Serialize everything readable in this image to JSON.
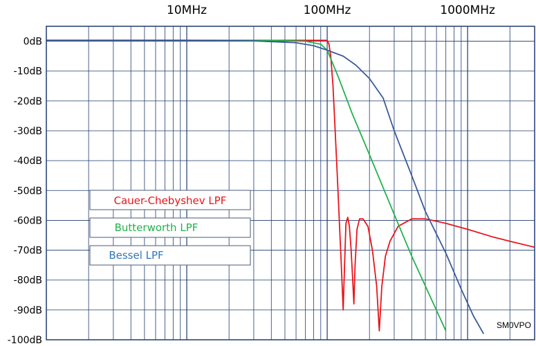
{
  "chart_data": {
    "type": "line",
    "title": "",
    "xlabel": "",
    "ylabel": "",
    "x_scale": "log",
    "xlim_mhz": [
      1,
      3000
    ],
    "ylim": [
      -100,
      5
    ],
    "grid": true,
    "legend_placement": "left",
    "credit": "SM0VPO",
    "x_ticks": [
      {
        "value": 10,
        "label": "10MHz"
      },
      {
        "value": 100,
        "label": "100MHz"
      },
      {
        "value": 1000,
        "label": "1000MHz"
      }
    ],
    "y_ticks": [
      {
        "value": 0,
        "label": "0dB"
      },
      {
        "value": -10,
        "label": "-10dB"
      },
      {
        "value": -20,
        "label": "-20dB"
      },
      {
        "value": -30,
        "label": "-30dB"
      },
      {
        "value": -40,
        "label": "-40dB"
      },
      {
        "value": -50,
        "label": "-50dB"
      },
      {
        "value": -60,
        "label": "-60dB"
      },
      {
        "value": -70,
        "label": "-70dB"
      },
      {
        "value": -80,
        "label": "-80dB"
      },
      {
        "value": -90,
        "label": "-90dB"
      },
      {
        "value": -100,
        "label": "-100dB"
      }
    ],
    "series": [
      {
        "name": "Cauer-Chebyshev LPF",
        "color": "#e8141a",
        "points": [
          [
            1,
            0.3
          ],
          [
            10,
            0.3
          ],
          [
            50,
            0.3
          ],
          [
            90,
            0.3
          ],
          [
            100,
            0.3
          ],
          [
            103,
            -1
          ],
          [
            106,
            -5
          ],
          [
            110,
            -15
          ],
          [
            114,
            -30
          ],
          [
            118,
            -45
          ],
          [
            122,
            -60
          ],
          [
            126,
            -75
          ],
          [
            130,
            -90
          ],
          [
            133,
            -75
          ],
          [
            136,
            -61
          ],
          [
            140,
            -59
          ],
          [
            144,
            -62
          ],
          [
            148,
            -70
          ],
          [
            152,
            -80
          ],
          [
            155,
            -88
          ],
          [
            158,
            -75
          ],
          [
            163,
            -63
          ],
          [
            170,
            -59.5
          ],
          [
            180,
            -59.5
          ],
          [
            195,
            -62
          ],
          [
            210,
            -70
          ],
          [
            225,
            -82
          ],
          [
            235,
            -97
          ],
          [
            245,
            -82
          ],
          [
            260,
            -72
          ],
          [
            280,
            -67
          ],
          [
            320,
            -62
          ],
          [
            400,
            -59.5
          ],
          [
            500,
            -59.5
          ],
          [
            700,
            -61
          ],
          [
            1000,
            -63
          ],
          [
            1500,
            -65.5
          ],
          [
            2000,
            -67
          ],
          [
            3000,
            -69
          ]
        ]
      },
      {
        "name": "Butterworth LPF",
        "color": "#22b14c",
        "points": [
          [
            1,
            0.3
          ],
          [
            10,
            0.3
          ],
          [
            40,
            0.3
          ],
          [
            70,
            0
          ],
          [
            90,
            -1
          ],
          [
            100,
            -3
          ],
          [
            120,
            -12
          ],
          [
            150,
            -24
          ],
          [
            200,
            -38
          ],
          [
            300,
            -58
          ],
          [
            400,
            -72
          ],
          [
            500,
            -82
          ],
          [
            700,
            -97
          ]
        ]
      },
      {
        "name": "Bessel LPF",
        "color": "#3a5a9a",
        "points": [
          [
            1,
            0.3
          ],
          [
            10,
            0.3
          ],
          [
            30,
            0.1
          ],
          [
            60,
            -0.5
          ],
          [
            80,
            -1.5
          ],
          [
            100,
            -3
          ],
          [
            130,
            -5
          ],
          [
            160,
            -8
          ],
          [
            200,
            -12.5
          ],
          [
            250,
            -19
          ],
          [
            300,
            -30
          ],
          [
            400,
            -45
          ],
          [
            500,
            -57
          ],
          [
            700,
            -71
          ],
          [
            900,
            -83
          ],
          [
            1100,
            -92
          ],
          [
            1300,
            -98
          ]
        ]
      }
    ]
  }
}
